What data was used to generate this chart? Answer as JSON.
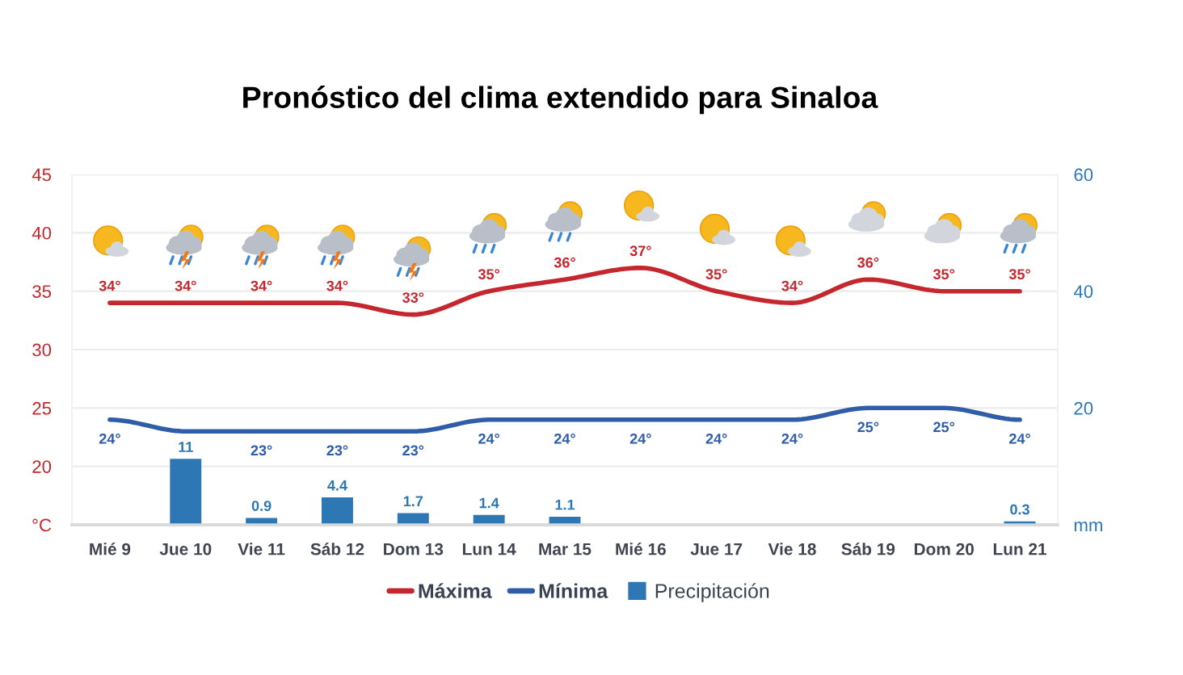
{
  "chart_data": {
    "type": "line",
    "title": "Pronóstico del clima extendido para Sinaloa",
    "categories": [
      "Mié 9",
      "Jue 10",
      "Vie 11",
      "Sáb 12",
      "Dom 13",
      "Lun 14",
      "Mar 15",
      "Mié 16",
      "Jue 17",
      "Vie 18",
      "Sáb 19",
      "Dom 20",
      "Lun 21"
    ],
    "series": [
      {
        "name": "Máxima",
        "color": "#c4282e",
        "values": [
          34,
          34,
          34,
          34,
          33,
          35,
          36,
          37,
          35,
          34,
          36,
          35,
          35
        ],
        "value_labels": [
          "34°",
          "34°",
          "34°",
          "34°",
          "33°",
          "35°",
          "36°",
          "37°",
          "35°",
          "34°",
          "36°",
          "35°",
          "35°"
        ]
      },
      {
        "name": "Mínima",
        "color": "#2f5da8",
        "values": [
          24,
          23,
          23,
          23,
          23,
          24,
          24,
          24,
          24,
          24,
          25,
          25,
          24
        ],
        "value_labels": [
          "24°",
          null,
          "23°",
          "23°",
          "23°",
          "24°",
          "24°",
          "24°",
          "24°",
          "24°",
          "25°",
          "25°",
          "24°"
        ]
      },
      {
        "name": "Precipitación",
        "type": "bar",
        "axis": "y2",
        "color": "#2c77b4",
        "values": [
          null,
          11,
          0.9,
          4.4,
          1.7,
          1.4,
          1.1,
          null,
          null,
          null,
          null,
          null,
          0.3
        ],
        "value_labels": [
          null,
          "11",
          "0.9",
          "4.4",
          "1.7",
          "1.4",
          "1.1",
          null,
          null,
          null,
          null,
          null,
          "0.3"
        ]
      }
    ],
    "ylim": [
      15,
      45
    ],
    "yticks": [
      {
        "value": 15,
        "label": "°C"
      },
      20,
      25,
      30,
      35,
      40,
      45
    ],
    "y2lim": [
      0,
      60
    ],
    "y2ticks": [
      {
        "value": 0,
        "label": "mm"
      },
      20,
      40,
      60
    ],
    "grid": "y",
    "legend": "bottom",
    "line_style": "solid"
  }
}
